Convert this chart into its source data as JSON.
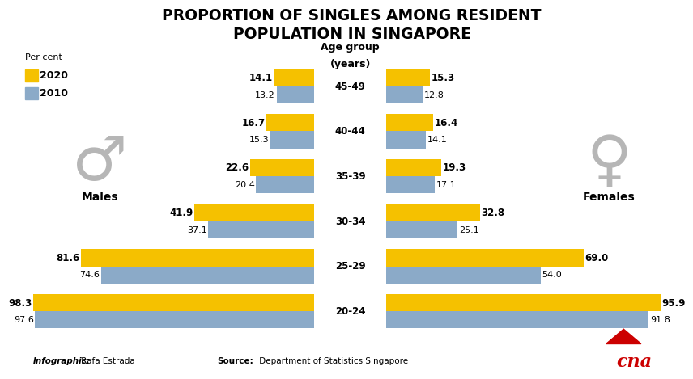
{
  "title": "PROPORTION OF SINGLES AMONG RESIDENT\nPOPULATION IN SINGAPORE",
  "age_groups": [
    "45-49",
    "40-44",
    "35-39",
    "30-34",
    "25-29",
    "20-24"
  ],
  "males_2020": [
    14.1,
    16.7,
    22.6,
    41.9,
    81.6,
    98.3
  ],
  "males_2010": [
    13.2,
    15.3,
    20.4,
    37.1,
    74.6,
    97.6
  ],
  "females_2020": [
    15.3,
    16.4,
    19.3,
    32.8,
    69.0,
    95.9
  ],
  "females_2010": [
    12.8,
    14.1,
    17.1,
    25.1,
    54.0,
    91.8
  ],
  "color_2020": "#F5C100",
  "color_2010": "#8BAAC8",
  "bg_color": "#FFFFFF",
  "bar_height": 0.38,
  "age_label_top": "Age group",
  "age_label_bottom": "(years)",
  "footer_infographic_italic": "Infographic:",
  "footer_infographic_name": " Rafa Estrada",
  "footer_source_bold": "Source:",
  "footer_source_name": " Department of Statistics Singapore",
  "legend_label_percnt": "Per cent",
  "legend_2020": "2020",
  "legend_2010": "2010",
  "males_label": "Males",
  "females_label": "Females"
}
